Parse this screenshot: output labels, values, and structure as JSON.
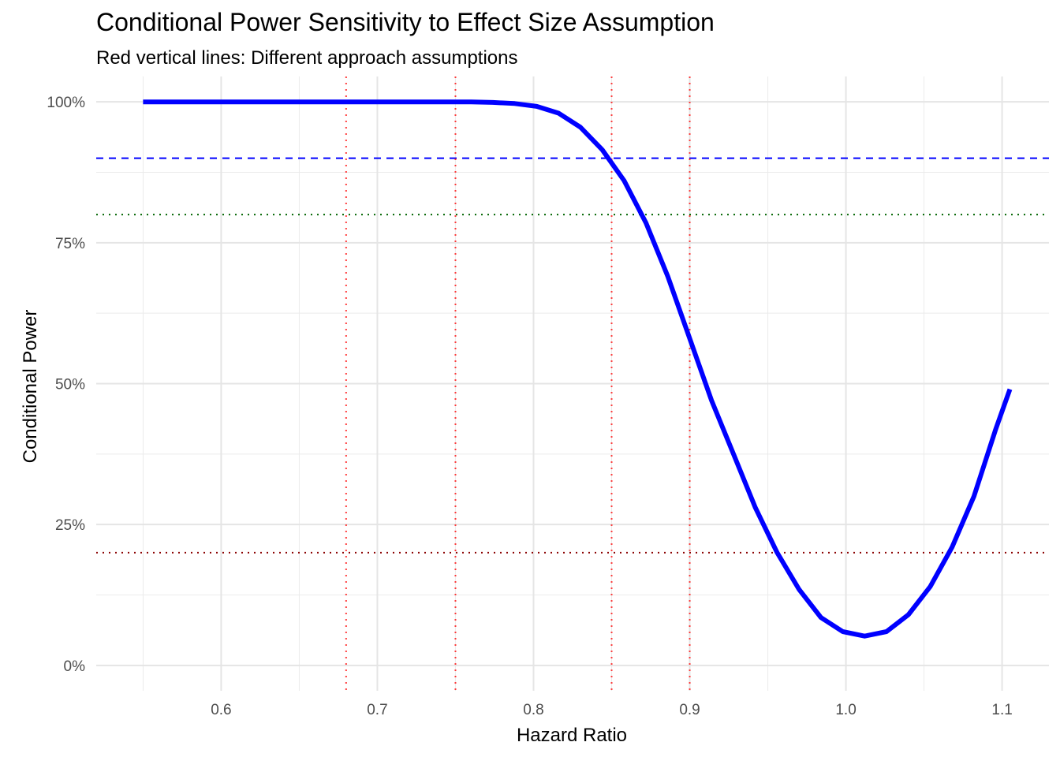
{
  "chart_data": {
    "type": "line",
    "title": "Conditional Power Sensitivity to Effect Size Assumption",
    "subtitle": "Red vertical lines: Different approach assumptions",
    "xlabel": "Hazard Ratio",
    "ylabel": "Conditional Power",
    "xlim": [
      0.52,
      1.13
    ],
    "ylim": [
      -0.045,
      1.045
    ],
    "x_ticks": [
      0.6,
      0.7,
      0.8,
      0.9,
      1.0,
      1.1
    ],
    "x_tick_labels": [
      "0.6",
      "0.7",
      "0.8",
      "0.9",
      "1.0",
      "1.1"
    ],
    "y_ticks": [
      0,
      0.25,
      0.5,
      0.75,
      1.0
    ],
    "y_tick_labels": [
      "0%",
      "25%",
      "50%",
      "75%",
      "100%"
    ],
    "grid": true,
    "series": [
      {
        "color": "#0000ff",
        "x": [
          0.55,
          0.564,
          0.578,
          0.592,
          0.606,
          0.62,
          0.634,
          0.648,
          0.662,
          0.676,
          0.69,
          0.704,
          0.718,
          0.732,
          0.746,
          0.76,
          0.774,
          0.788,
          0.802,
          0.816,
          0.83,
          0.844,
          0.858,
          0.872,
          0.886,
          0.9,
          0.914,
          0.928,
          0.942,
          0.956,
          0.97,
          0.984,
          0.998,
          1.012,
          1.026,
          1.04,
          1.054,
          1.068,
          1.082,
          1.096,
          1.105
        ],
        "y": [
          1.0,
          1.0,
          1.0,
          1.0,
          1.0,
          1.0,
          1.0,
          1.0,
          1.0,
          1.0,
          1.0,
          1.0,
          1.0,
          1.0,
          1.0,
          1.0,
          0.999,
          0.997,
          0.992,
          0.98,
          0.955,
          0.915,
          0.86,
          0.785,
          0.69,
          0.58,
          0.47,
          0.375,
          0.28,
          0.2,
          0.135,
          0.085,
          0.06,
          0.052,
          0.06,
          0.09,
          0.14,
          0.21,
          0.3,
          0.42,
          0.49
        ]
      }
    ],
    "hlines": [
      {
        "y": 0.9,
        "color": "#0000ff",
        "style": "dashed"
      },
      {
        "y": 0.8,
        "color": "#006400",
        "style": "dotted"
      },
      {
        "y": 0.2,
        "color": "#8b0000",
        "style": "dotted"
      }
    ],
    "vlines": [
      {
        "x": 0.68,
        "color": "#ff0000",
        "style": "dotted"
      },
      {
        "x": 0.75,
        "color": "#ff0000",
        "style": "dotted"
      },
      {
        "x": 0.85,
        "color": "#ff0000",
        "style": "dotted"
      },
      {
        "x": 0.9,
        "color": "#ff0000",
        "style": "dotted"
      }
    ]
  }
}
